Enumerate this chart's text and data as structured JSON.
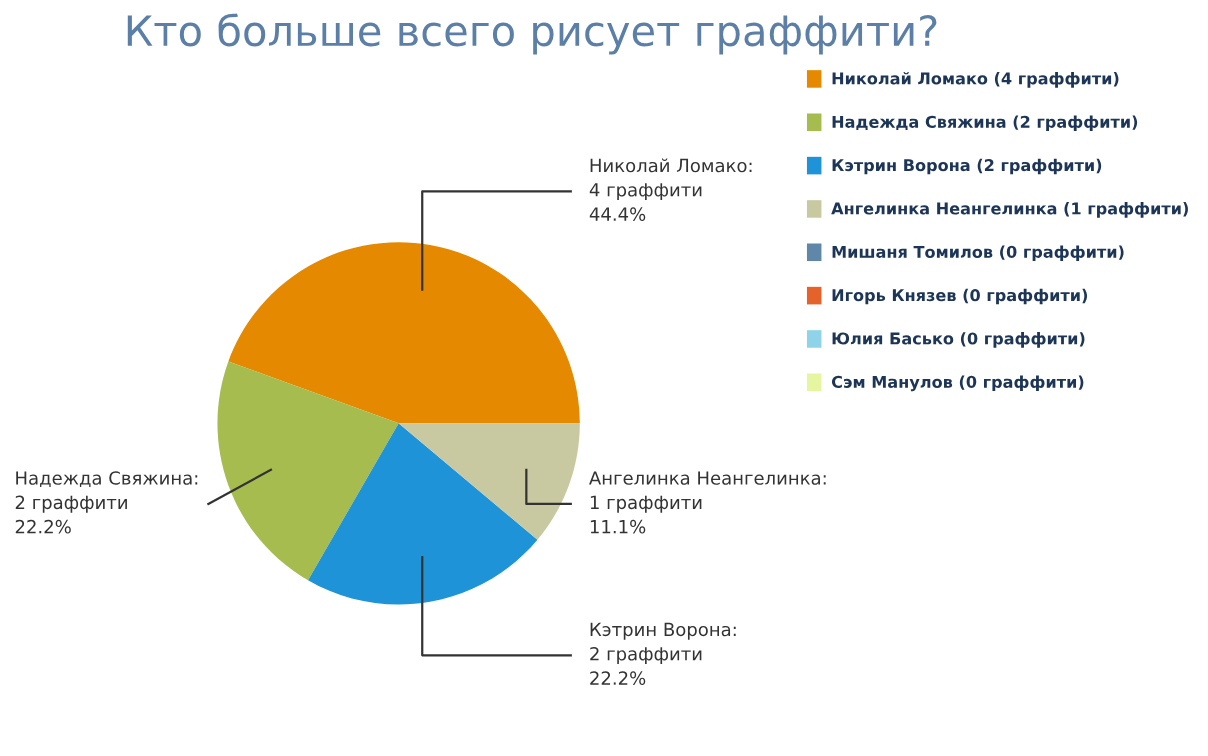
{
  "chart_data": {
    "type": "pie",
    "title": "Кто больше всего рисует граффити?",
    "categories": [
      "Николай Ломако (4 граффити)",
      "Надежда Свяжина (2 граффити)",
      "Кэтрин Ворона (2 граффити)",
      "Ангелинка Неангелинка (1 граффити)",
      "Мишаня Томилов (0 граффити)",
      "Игорь Князев (0 граффити)",
      "Юлия Басько (0 граффити)",
      "Сэм Манулов (0 граффити)"
    ],
    "values": [
      4,
      2,
      2,
      1,
      0,
      0,
      0,
      0
    ],
    "value_labels": [
      "Николай Ломако:\n4 граффити\n44.4%",
      "Надежда Свяжина:\n2 граффити\n22.2%",
      "Кэтрин Ворона:\n2 граффити\n22.2%",
      "Ангелинка Неангелинка:\n1 граффити\n11.1%",
      null,
      null,
      null,
      null
    ],
    "colors": [
      "#e58a00",
      "#a6bc4e",
      "#1f93d8",
      "#c9c9a1",
      "#5f87a8",
      "#e5622a",
      "#8ed3e8",
      "#e6f5a0"
    ],
    "legend": "right"
  }
}
